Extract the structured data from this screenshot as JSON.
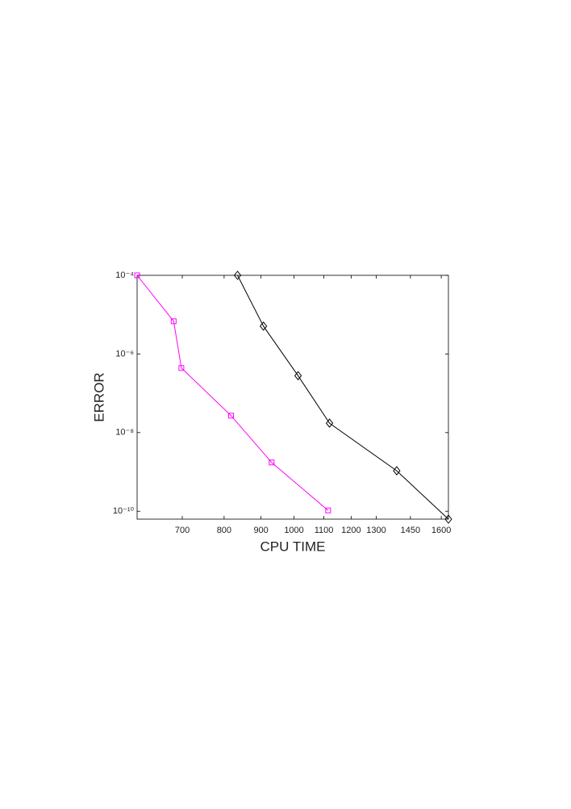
{
  "chart_data": {
    "type": "line",
    "xlabel": "CPU TIME",
    "ylabel": "ERROR",
    "xscale": "log",
    "yscale": "log",
    "xlim": [
      606,
      1637
    ],
    "ylim": [
      6.3e-11,
      0.0001
    ],
    "xticks": [
      700,
      800,
      900,
      1000,
      1100,
      1200,
      1300,
      1450,
      1600
    ],
    "yticks": [
      {
        "value": 0.0001,
        "label": "10⁻⁴"
      },
      {
        "value": 1e-06,
        "label": "10⁻⁶"
      },
      {
        "value": 1e-08,
        "label": "10⁻⁸"
      },
      {
        "value": 1e-10,
        "label": "10⁻¹⁰"
      }
    ],
    "series": [
      {
        "color": "#ff00ff",
        "marker": "square",
        "x": [
          606,
          681,
          698,
          818,
          931,
          1115
        ],
        "values": [
          0.0001,
          6.8e-06,
          4.4e-07,
          2.7e-08,
          1.74e-09,
          1.05e-10
        ]
      },
      {
        "color": "#000000",
        "marker": "diamond",
        "x": [
          835,
          907,
          1013,
          1120,
          1388,
          1637
        ],
        "values": [
          0.0001,
          5.1e-06,
          2.8e-07,
          1.74e-08,
          1.07e-09,
          6.3e-11
        ]
      }
    ]
  }
}
